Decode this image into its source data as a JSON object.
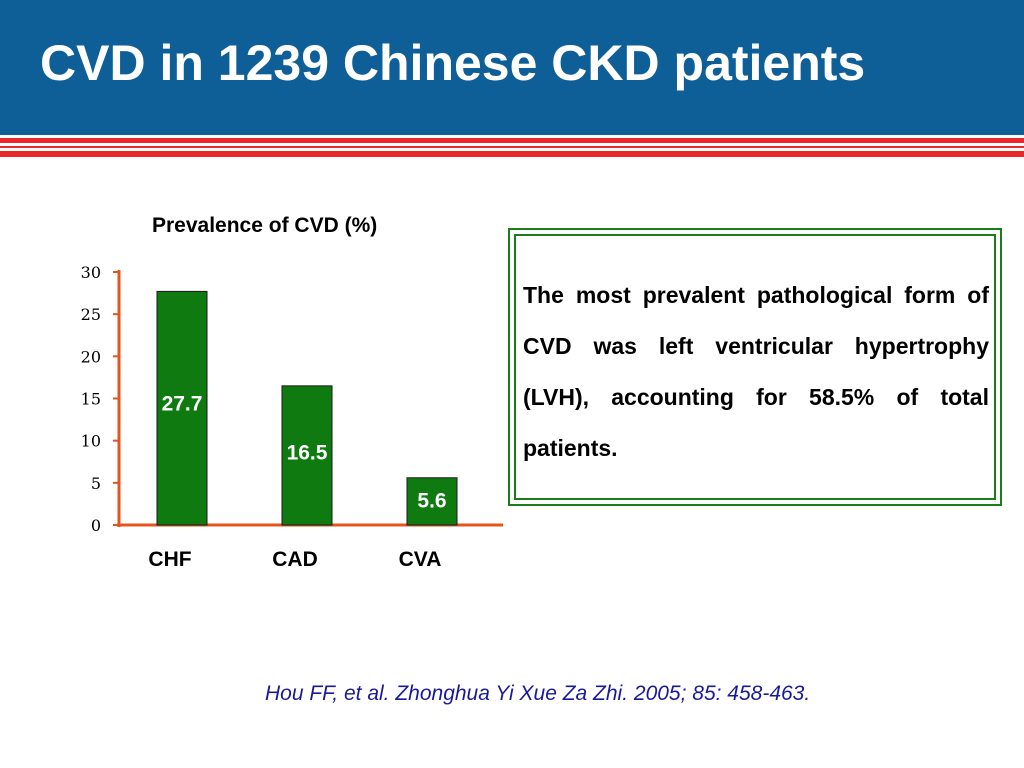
{
  "slide": {
    "title": "CVD in 1239 Chinese CKD patients",
    "note": "The most prevalent pathological form of CVD was left ventricular hypertrophy (LVH), accounting for 58.5% of total patients.",
    "citation": "Hou FF, et al. Zhonghua Yi Xue Za Zhi. 2005; 85: 458-463."
  },
  "colors": {
    "header_bg": "#0e5f97",
    "stripe_red": "#e8282b",
    "bar_fill": "#0f7a0f",
    "axis": "#e4541c",
    "box_border": "#1a7f1a",
    "citation_text": "#1a1a99"
  },
  "chart_data": {
    "type": "bar",
    "title": "Prevalence of CVD (%)",
    "xlabel": "",
    "ylabel": "",
    "categories": [
      "CHF",
      "CAD",
      "CVA"
    ],
    "values": [
      27.7,
      16.5,
      5.6
    ],
    "data_labels": [
      "27.7",
      "16.5",
      "5.6"
    ],
    "ylim": [
      0,
      30
    ],
    "yticks": [
      0,
      5,
      10,
      15,
      20,
      25,
      30
    ],
    "grid": false,
    "legend": "none"
  }
}
